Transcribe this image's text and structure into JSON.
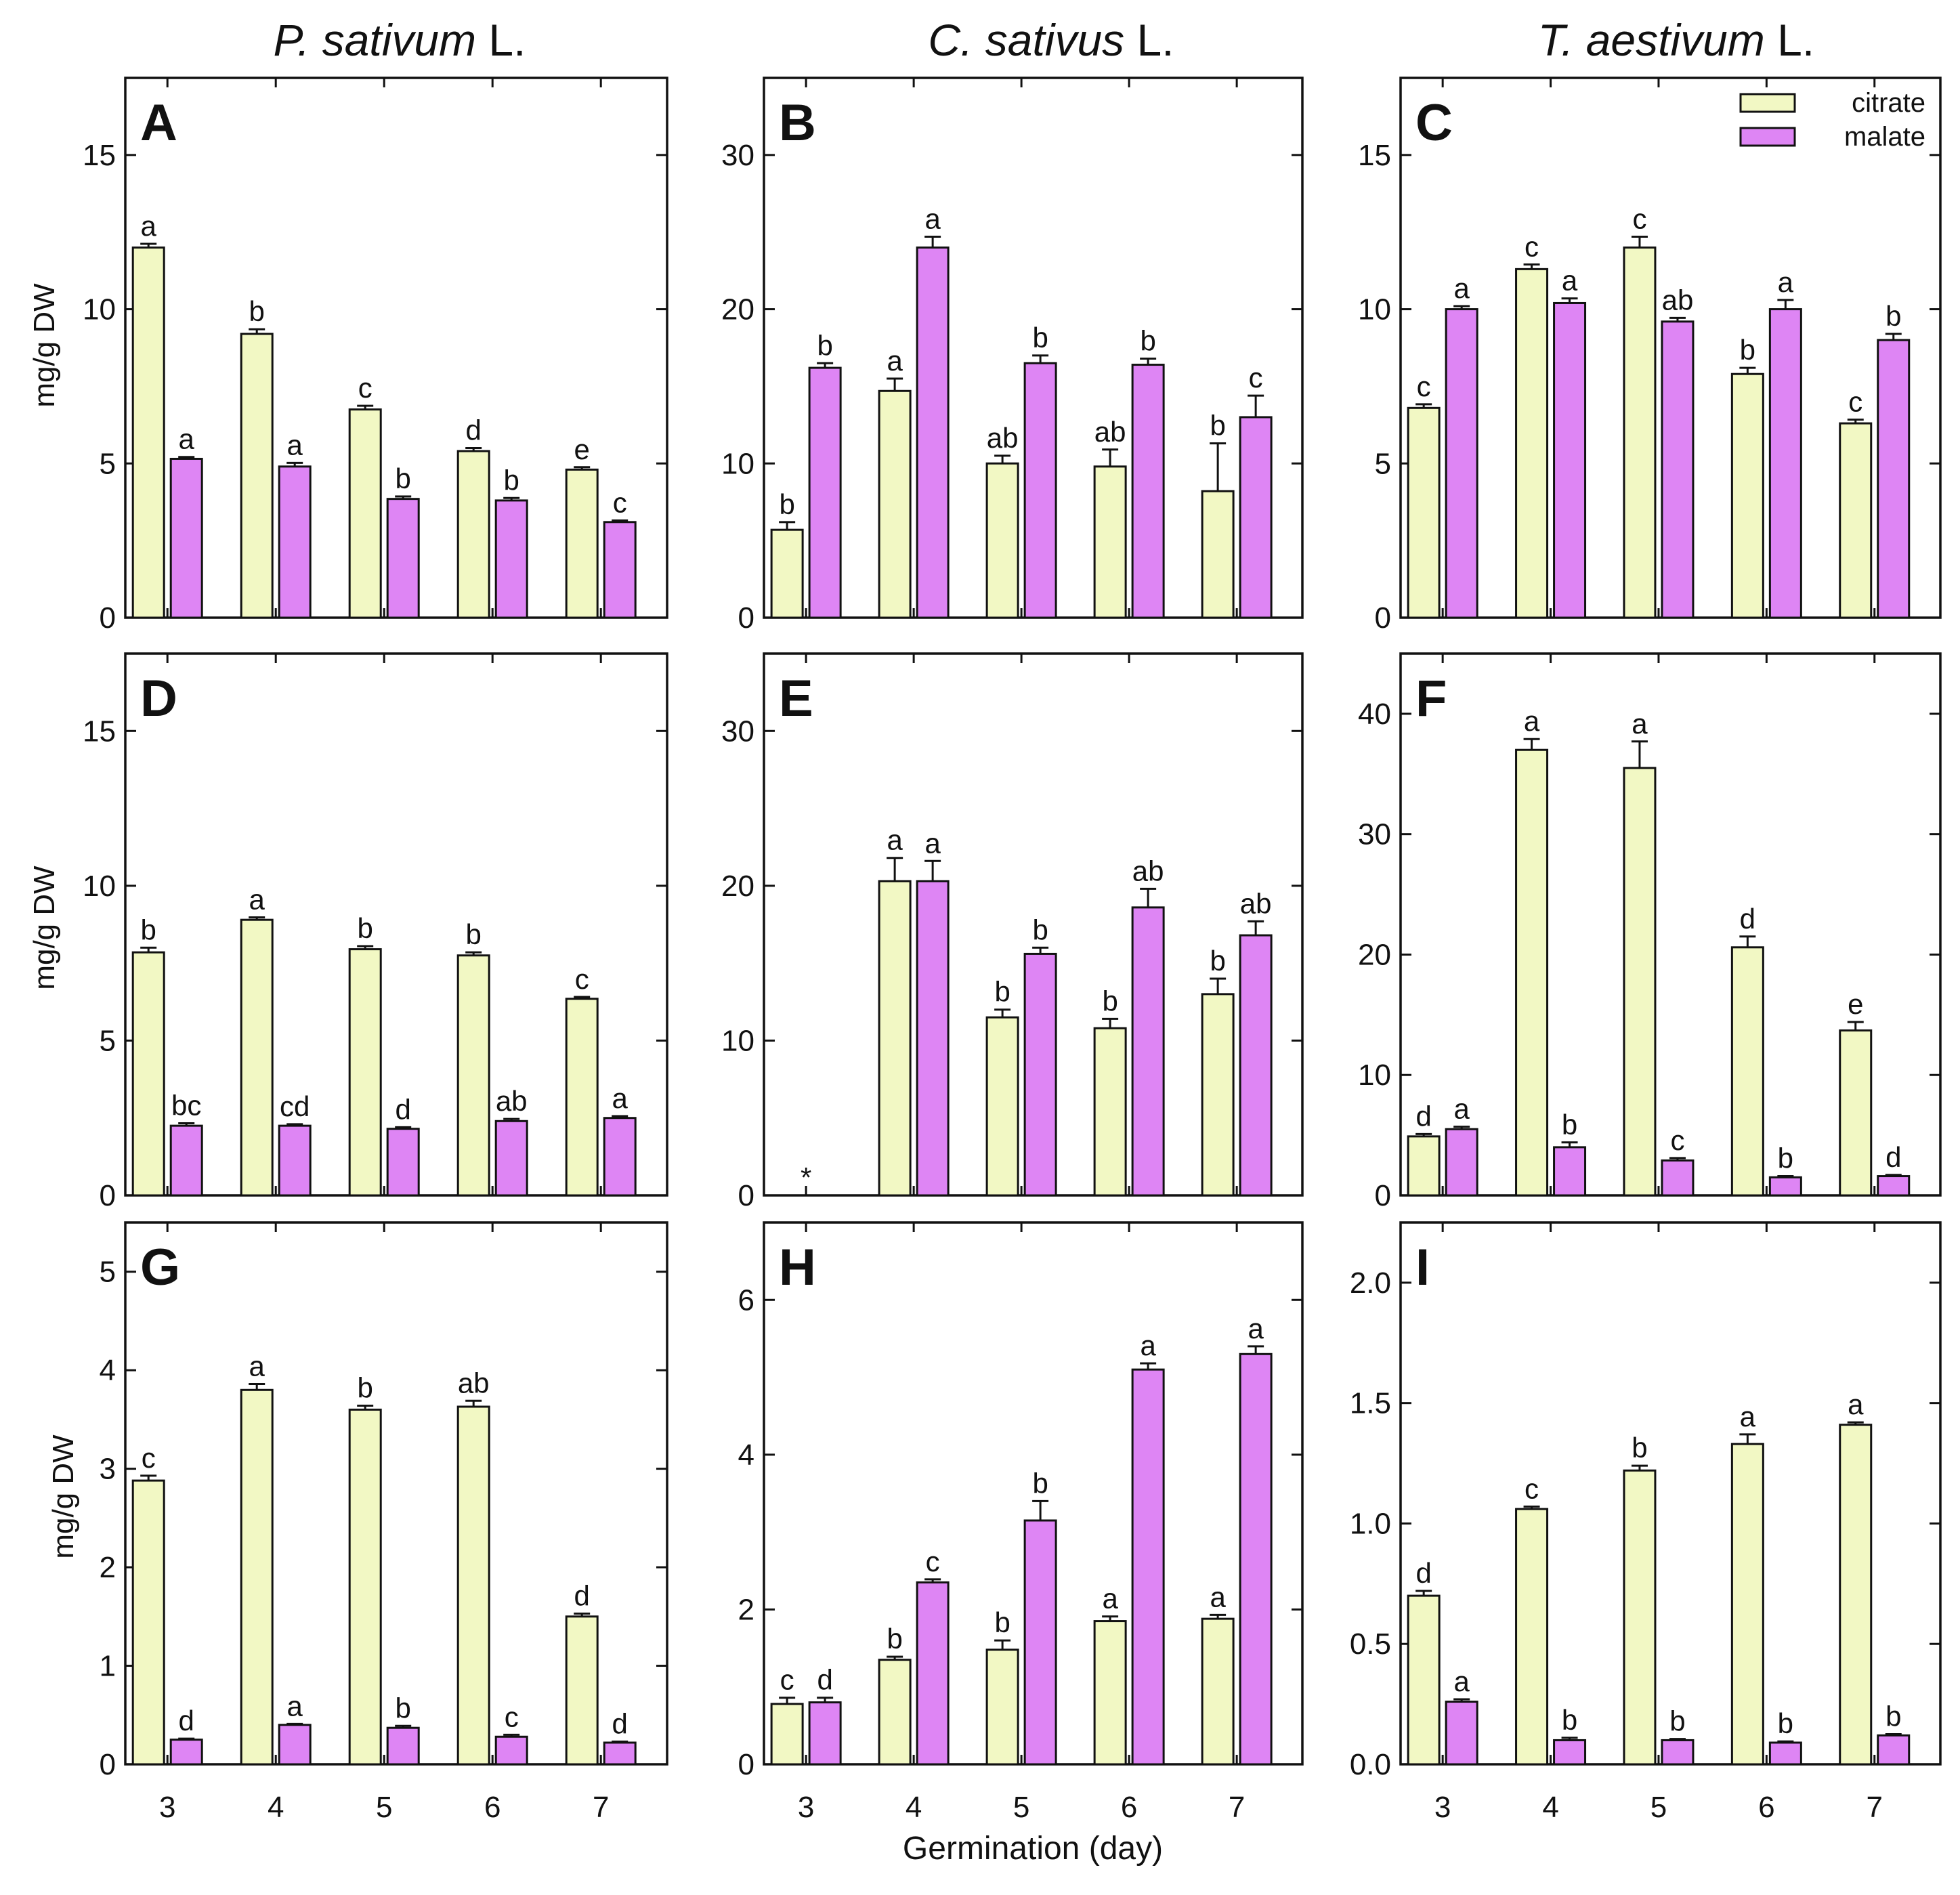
{
  "figure": {
    "column_titles": [
      {
        "italic": "P. sativum",
        "suffix": " L."
      },
      {
        "italic": "C. sativus",
        "suffix": " L."
      },
      {
        "italic": "T. aestivum",
        "suffix": " L."
      }
    ],
    "y_axis_label": "mg/g DW",
    "x_axis_label": "Germination (day)",
    "colors": {
      "citrate": "#f2f8c4",
      "malate": "#de85f4"
    }
  },
  "chart_data": [
    {
      "panel": "A",
      "type": "bar",
      "categories": [
        "3",
        "4",
        "5",
        "6",
        "7"
      ],
      "ylim": [
        0,
        17.5
      ],
      "yticks": [
        "0",
        "5",
        "10",
        "15"
      ],
      "show_x_ticks": false,
      "legend": null,
      "series": [
        {
          "name": "citrate",
          "values": [
            12.0,
            9.2,
            6.75,
            5.4,
            4.8
          ],
          "errors": [
            0.12,
            0.15,
            0.12,
            0.1,
            0.08
          ],
          "labels": [
            "a",
            "b",
            "c",
            "d",
            "e"
          ]
        },
        {
          "name": "malate",
          "values": [
            5.15,
            4.9,
            3.85,
            3.8,
            3.1
          ],
          "errors": [
            0.06,
            0.12,
            0.08,
            0.08,
            0.05
          ],
          "labels": [
            "a",
            "a",
            "b",
            "b",
            "c"
          ]
        }
      ]
    },
    {
      "panel": "B",
      "type": "bar",
      "categories": [
        "3",
        "4",
        "5",
        "6",
        "7"
      ],
      "ylim": [
        0,
        35
      ],
      "yticks": [
        "0",
        "10",
        "20",
        "30"
      ],
      "show_x_ticks": false,
      "legend": null,
      "series": [
        {
          "name": "citrate",
          "values": [
            5.7,
            14.7,
            10.0,
            9.8,
            8.2
          ],
          "errors": [
            0.5,
            0.8,
            0.5,
            1.1,
            3.1
          ],
          "labels": [
            "b",
            "a",
            "ab",
            "ab",
            "b"
          ]
        },
        {
          "name": "malate",
          "values": [
            16.2,
            24.0,
            16.5,
            16.4,
            13.0
          ],
          "errors": [
            0.3,
            0.7,
            0.5,
            0.4,
            1.4
          ],
          "labels": [
            "b",
            "a",
            "b",
            "b",
            "c"
          ]
        }
      ]
    },
    {
      "panel": "C",
      "type": "bar",
      "categories": [
        "3",
        "4",
        "5",
        "6",
        "7"
      ],
      "ylim": [
        0,
        17.5
      ],
      "yticks": [
        "0",
        "5",
        "10",
        "15"
      ],
      "show_x_ticks": false,
      "legend": {
        "position": "top-right",
        "entries": [
          "citrate",
          "malate"
        ]
      },
      "series": [
        {
          "name": "citrate",
          "values": [
            6.8,
            11.3,
            12.0,
            7.9,
            6.3
          ],
          "errors": [
            0.12,
            0.15,
            0.35,
            0.2,
            0.12
          ],
          "labels": [
            "c",
            "c",
            "c",
            "b",
            "c"
          ]
        },
        {
          "name": "malate",
          "values": [
            10.0,
            10.2,
            9.6,
            10.0,
            9.0
          ],
          "errors": [
            0.1,
            0.15,
            0.12,
            0.3,
            0.2
          ],
          "labels": [
            "a",
            "a",
            "ab",
            "a",
            "b"
          ]
        }
      ]
    },
    {
      "panel": "D",
      "type": "bar",
      "categories": [
        "3",
        "4",
        "5",
        "6",
        "7"
      ],
      "ylim": [
        0,
        17.5
      ],
      "yticks": [
        "0",
        "5",
        "10",
        "15"
      ],
      "show_x_ticks": false,
      "legend": null,
      "series": [
        {
          "name": "citrate",
          "values": [
            7.85,
            8.9,
            7.95,
            7.75,
            6.35
          ],
          "errors": [
            0.15,
            0.08,
            0.1,
            0.1,
            0.06
          ],
          "labels": [
            "b",
            "a",
            "b",
            "b",
            "c"
          ]
        },
        {
          "name": "malate",
          "values": [
            2.25,
            2.25,
            2.15,
            2.4,
            2.5
          ],
          "errors": [
            0.08,
            0.05,
            0.05,
            0.07,
            0.06
          ],
          "labels": [
            "bc",
            "cd",
            "d",
            "ab",
            "a"
          ]
        }
      ]
    },
    {
      "panel": "E",
      "type": "bar",
      "categories": [
        "3",
        "4",
        "5",
        "6",
        "7"
      ],
      "ylim": [
        0,
        35
      ],
      "yticks": [
        "0",
        "10",
        "20",
        "30"
      ],
      "show_x_ticks": false,
      "legend": null,
      "annotation": {
        "text": "*",
        "category": "3"
      },
      "series": [
        {
          "name": "citrate",
          "values": [
            null,
            20.3,
            11.5,
            10.8,
            13.0
          ],
          "errors": [
            null,
            1.5,
            0.5,
            0.6,
            1.0
          ],
          "labels": [
            "",
            "a",
            "b",
            "b",
            "b"
          ]
        },
        {
          "name": "malate",
          "values": [
            null,
            20.3,
            15.6,
            18.6,
            16.8
          ],
          "errors": [
            null,
            1.3,
            0.4,
            1.2,
            0.9
          ],
          "labels": [
            "",
            "a",
            "b",
            "ab",
            "ab"
          ]
        }
      ]
    },
    {
      "panel": "F",
      "type": "bar",
      "categories": [
        "3",
        "4",
        "5",
        "6",
        "7"
      ],
      "ylim": [
        0,
        45
      ],
      "yticks": [
        "0",
        "10",
        "20",
        "30",
        "40"
      ],
      "show_x_ticks": false,
      "legend": null,
      "series": [
        {
          "name": "citrate",
          "values": [
            4.9,
            37.0,
            35.5,
            20.6,
            13.7
          ],
          "errors": [
            0.2,
            0.9,
            2.2,
            0.9,
            0.7
          ],
          "labels": [
            "d",
            "a",
            "a",
            "d",
            "e"
          ]
        },
        {
          "name": "malate",
          "values": [
            5.5,
            4.0,
            2.9,
            1.5,
            1.6
          ],
          "errors": [
            0.2,
            0.4,
            0.2,
            0.1,
            0.1
          ],
          "labels": [
            "a",
            "b",
            "c",
            "b",
            "d"
          ]
        }
      ]
    },
    {
      "panel": "G",
      "type": "bar",
      "categories": [
        "3",
        "4",
        "5",
        "6",
        "7"
      ],
      "ylim": [
        0,
        5.5
      ],
      "yticks": [
        "0",
        "1",
        "2",
        "3",
        "4",
        "5"
      ],
      "show_x_ticks": true,
      "legend": null,
      "series": [
        {
          "name": "citrate",
          "values": [
            2.88,
            3.8,
            3.6,
            3.63,
            1.5
          ],
          "errors": [
            0.05,
            0.06,
            0.04,
            0.06,
            0.03
          ],
          "labels": [
            "c",
            "a",
            "b",
            "ab",
            "d"
          ]
        },
        {
          "name": "malate",
          "values": [
            0.25,
            0.4,
            0.37,
            0.28,
            0.22
          ],
          "errors": [
            0.01,
            0.01,
            0.02,
            0.02,
            0.01
          ],
          "labels": [
            "d",
            "a",
            "b",
            "c",
            "d"
          ]
        }
      ]
    },
    {
      "panel": "H",
      "type": "bar",
      "categories": [
        "3",
        "4",
        "5",
        "6",
        "7"
      ],
      "ylim": [
        0,
        7
      ],
      "yticks": [
        "0",
        "2",
        "4",
        "6"
      ],
      "show_x_ticks": true,
      "legend": null,
      "series": [
        {
          "name": "citrate",
          "values": [
            0.78,
            1.35,
            1.48,
            1.85,
            1.88
          ],
          "errors": [
            0.08,
            0.04,
            0.12,
            0.06,
            0.05
          ],
          "labels": [
            "c",
            "b",
            "b",
            "a",
            "a"
          ]
        },
        {
          "name": "malate",
          "values": [
            0.8,
            2.35,
            3.15,
            5.1,
            5.3
          ],
          "errors": [
            0.06,
            0.04,
            0.25,
            0.08,
            0.1
          ],
          "labels": [
            "d",
            "c",
            "b",
            "a",
            "a"
          ]
        }
      ]
    },
    {
      "panel": "I",
      "type": "bar",
      "categories": [
        "3",
        "4",
        "5",
        "6",
        "7"
      ],
      "ylim": [
        0,
        2.25
      ],
      "yticks": [
        "0.0",
        "0.5",
        "1.0",
        "1.5",
        "2.0"
      ],
      "show_x_ticks": true,
      "legend": null,
      "series": [
        {
          "name": "citrate",
          "values": [
            0.7,
            1.06,
            1.22,
            1.33,
            1.41
          ],
          "errors": [
            0.02,
            0.01,
            0.02,
            0.04,
            0.01
          ],
          "labels": [
            "d",
            "c",
            "b",
            "a",
            "a"
          ]
        },
        {
          "name": "malate",
          "values": [
            0.26,
            0.1,
            0.1,
            0.09,
            0.12
          ],
          "errors": [
            0.01,
            0.01,
            0.005,
            0.005,
            0.005
          ],
          "labels": [
            "a",
            "b",
            "b",
            "b",
            "b"
          ]
        }
      ]
    }
  ]
}
